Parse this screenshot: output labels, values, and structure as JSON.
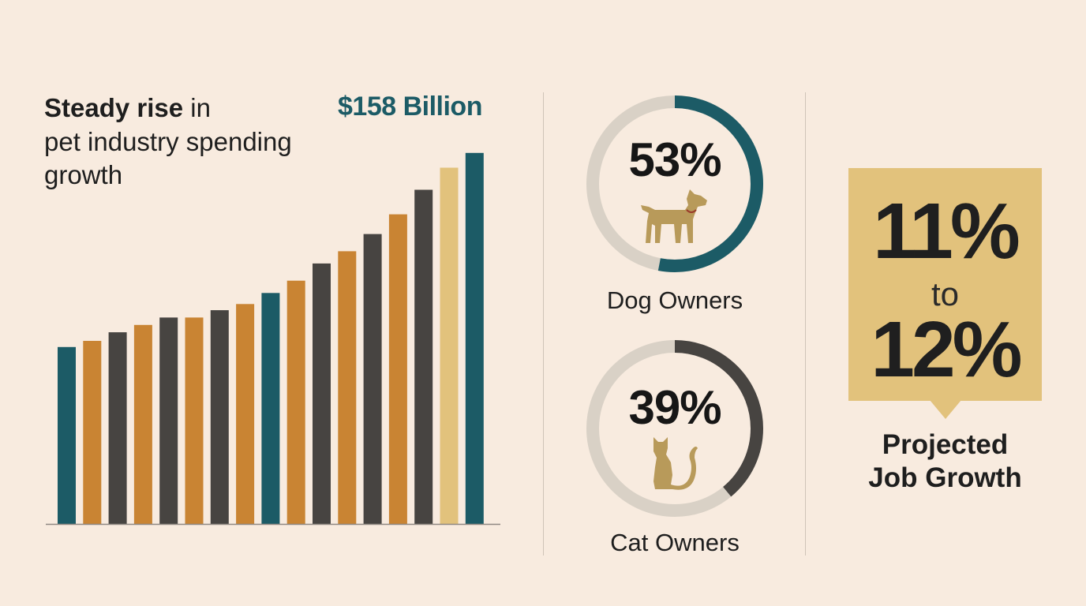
{
  "spending": {
    "title_bold": "Steady rise",
    "title_rest": " in",
    "title_line2": "pet industry spending",
    "title_line3": "growth",
    "headline_value": "$158 Billion"
  },
  "chart_data": {
    "type": "bar",
    "title": "Steady rise in pet industry spending growth",
    "annotation": "$158 Billion",
    "values": [
      72,
      74.5,
      78,
      81,
      84,
      84,
      87,
      89.5,
      94,
      99,
      106,
      111,
      118,
      126,
      136,
      145,
      151
    ],
    "colors": [
      "#1c5b66",
      "#c98433",
      "#474441",
      "#c98433",
      "#474441",
      "#c98433",
      "#474441",
      "#c98433",
      "#1c5b66",
      "#c98433",
      "#474441",
      "#c98433",
      "#474441",
      "#c98433",
      "#474441",
      "#e2c27c",
      "#1c5b66"
    ],
    "ylim": [
      0,
      158
    ],
    "grid": false,
    "legend": "none",
    "xlabel": "",
    "ylabel": ""
  },
  "ownership": {
    "dog": {
      "percent": 53,
      "label_pct": "53%",
      "label": "Dog Owners",
      "icon": "dog-icon",
      "color": "#1c5b66"
    },
    "cat": {
      "percent": 39,
      "label_pct": "39%",
      "label": "Cat Owners",
      "icon": "cat-icon",
      "color": "#474441"
    },
    "track_color": "#d9d1c6",
    "icon_color": "#b89a5a"
  },
  "jobs": {
    "low": "11%",
    "to": "to",
    "high": "12%",
    "caption_line1": "Projected",
    "caption_line2": "Job Growth",
    "box_color": "#e2c27c"
  }
}
